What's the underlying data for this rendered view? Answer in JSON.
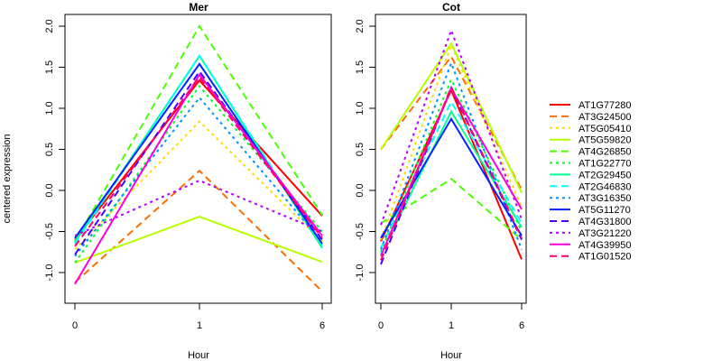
{
  "chart_data": {
    "type": "line",
    "ylabel": "centered expression",
    "legend_position": "right",
    "series_meta": [
      {
        "name": "AT1G77280",
        "color": "#FF0000",
        "dash": "solid"
      },
      {
        "name": "AT3G24500",
        "color": "#FF6D00",
        "dash": "dashed"
      },
      {
        "name": "AT5G05410",
        "color": "#FFDB00",
        "dash": "dotted"
      },
      {
        "name": "AT5G59820",
        "color": "#B6FF00",
        "dash": "solid"
      },
      {
        "name": "AT4G26850",
        "color": "#49FF00",
        "dash": "dashed"
      },
      {
        "name": "AT1G22770",
        "color": "#00FF24",
        "dash": "dotted"
      },
      {
        "name": "AT2G29450",
        "color": "#00FF92",
        "dash": "solid"
      },
      {
        "name": "AT2G46830",
        "color": "#00FFFF",
        "dash": "dashed"
      },
      {
        "name": "AT3G16350",
        "color": "#0092FF",
        "dash": "dotted"
      },
      {
        "name": "AT5G11270",
        "color": "#0024FF",
        "dash": "solid"
      },
      {
        "name": "AT4G31800",
        "color": "#4900FF",
        "dash": "dashed"
      },
      {
        "name": "AT3G21220",
        "color": "#B600FF",
        "dash": "dotted"
      },
      {
        "name": "AT4G39950",
        "color": "#FF00DB",
        "dash": "solid"
      },
      {
        "name": "AT1G01520",
        "color": "#FF006D",
        "dash": "dashed"
      }
    ],
    "panels": [
      {
        "title": "Mer",
        "xlabel": "Hour",
        "categories": [
          "0",
          "1",
          "6"
        ],
        "ylim": [
          -1.3,
          2.15
        ],
        "yticks": [
          "-1.0",
          "-0.5",
          "0.0",
          "0.5",
          "1.0",
          "1.5",
          "2.0"
        ],
        "series": [
          {
            "name": "AT1G77280",
            "values": [
              -0.6,
              1.34,
              -0.31
            ]
          },
          {
            "name": "AT3G24500",
            "values": [
              -1.12,
              0.24,
              -1.23
            ]
          },
          {
            "name": "AT5G05410",
            "values": [
              -0.72,
              0.84,
              -0.62
            ]
          },
          {
            "name": "AT5G59820",
            "values": [
              -0.88,
              -0.32,
              -0.87
            ]
          },
          {
            "name": "AT4G26850",
            "values": [
              -0.62,
              2.0,
              -0.3
            ]
          },
          {
            "name": "AT1G22770",
            "values": [
              -0.88,
              1.27,
              -0.5
            ]
          },
          {
            "name": "AT2G29450",
            "values": [
              -0.63,
              1.64,
              -0.7
            ]
          },
          {
            "name": "AT2G46830",
            "values": [
              -0.65,
              1.64,
              -0.67
            ]
          },
          {
            "name": "AT3G16350",
            "values": [
              -0.8,
              1.13,
              -0.63
            ]
          },
          {
            "name": "AT5G11270",
            "values": [
              -0.58,
              1.54,
              -0.65
            ]
          },
          {
            "name": "AT4G31800",
            "values": [
              -0.78,
              1.45,
              -0.6
            ]
          },
          {
            "name": "AT3G21220",
            "values": [
              -0.55,
              0.12,
              -0.5
            ]
          },
          {
            "name": "AT4G39950",
            "values": [
              -1.14,
              1.41,
              -0.55
            ]
          },
          {
            "name": "AT1G01520",
            "values": [
              -0.68,
              1.38,
              -0.58
            ]
          }
        ]
      },
      {
        "title": "Cot",
        "xlabel": "Hour",
        "categories": [
          "0",
          "1",
          "6"
        ],
        "ylim": [
          -1.3,
          2.15
        ],
        "yticks": [
          "-1.0",
          "-0.5",
          "0.0",
          "0.5",
          "1.0",
          "1.5",
          "2.0"
        ],
        "series": [
          {
            "name": "AT1G77280",
            "values": [
              -0.62,
              1.22,
              -0.84
            ]
          },
          {
            "name": "AT3G24500",
            "values": [
              0.5,
              1.63,
              0.01
            ]
          },
          {
            "name": "AT5G05410",
            "values": [
              -0.6,
              1.77,
              -0.2
            ]
          },
          {
            "name": "AT5G59820",
            "values": [
              0.5,
              1.79,
              -0.03
            ]
          },
          {
            "name": "AT4G26850",
            "values": [
              -0.4,
              0.14,
              -0.6
            ]
          },
          {
            "name": "AT1G22770",
            "values": [
              -0.75,
              1.35,
              -0.5
            ]
          },
          {
            "name": "AT2G29450",
            "values": [
              -0.78,
              0.96,
              -0.45
            ]
          },
          {
            "name": "AT2G46830",
            "values": [
              -0.7,
              1.08,
              -0.4
            ]
          },
          {
            "name": "AT3G16350",
            "values": [
              -0.72,
              1.55,
              -0.72
            ]
          },
          {
            "name": "AT5G11270",
            "values": [
              -0.58,
              0.87,
              -0.55
            ]
          },
          {
            "name": "AT4G31800",
            "values": [
              -0.9,
              1.25,
              -0.6
            ]
          },
          {
            "name": "AT3G21220",
            "values": [
              -0.42,
              1.95,
              -0.35
            ]
          },
          {
            "name": "AT4G39950",
            "values": [
              -0.8,
              1.24,
              -0.23
            ]
          },
          {
            "name": "AT1G01520",
            "values": [
              -0.85,
              1.26,
              -0.58
            ]
          }
        ]
      }
    ]
  }
}
